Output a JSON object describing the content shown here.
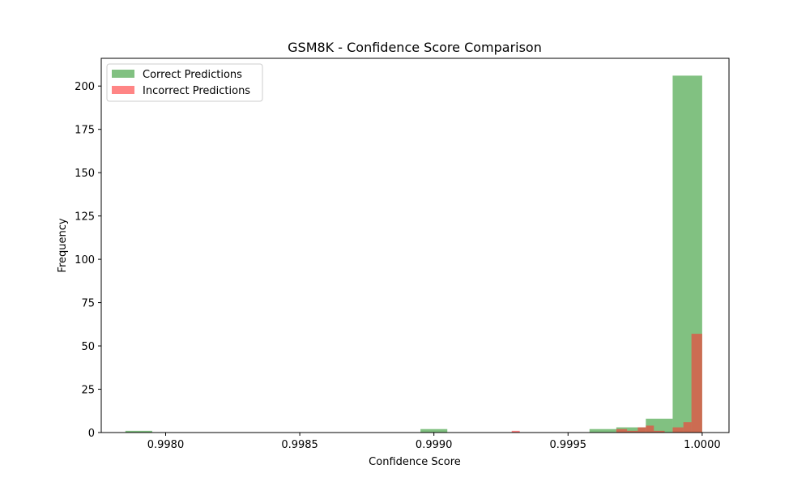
{
  "chart_data": {
    "type": "bar",
    "title": "GSM8K - Confidence Score Comparison",
    "xlabel": "Confidence Score",
    "ylabel": "Frequency",
    "xlim": [
      0.99776,
      1.0001
    ],
    "ylim": [
      0,
      216
    ],
    "xticks": [
      0.998,
      0.9985,
      0.999,
      0.9995,
      1.0
    ],
    "xtick_labels": [
      "0.9980",
      "0.9985",
      "0.9990",
      "0.9995",
      "1.0000"
    ],
    "yticks": [
      0,
      25,
      50,
      75,
      100,
      125,
      150,
      175,
      200
    ],
    "ytick_labels": [
      "0",
      "25",
      "50",
      "75",
      "100",
      "125",
      "150",
      "175",
      "200"
    ],
    "legend_position": "top-left",
    "grid": false,
    "series": [
      {
        "name": "Correct Predictions",
        "color": "#4ca64c",
        "opacity": 0.7,
        "bins": [
          {
            "x0": 0.99785,
            "x1": 0.99795,
            "count": 1
          },
          {
            "x0": 0.99895,
            "x1": 0.99905,
            "count": 2
          },
          {
            "x0": 0.99958,
            "x1": 0.99968,
            "count": 2
          },
          {
            "x0": 0.99968,
            "x1": 0.99979,
            "count": 3
          },
          {
            "x0": 0.99979,
            "x1": 0.99989,
            "count": 8
          },
          {
            "x0": 0.99989,
            "x1": 1.0,
            "count": 206
          }
        ]
      },
      {
        "name": "Incorrect Predictions",
        "color": "#ff3333",
        "opacity": 0.6,
        "bins": [
          {
            "x0": 0.99929,
            "x1": 0.99932,
            "count": 1
          },
          {
            "x0": 0.99968,
            "x1": 0.99972,
            "count": 2
          },
          {
            "x0": 0.99972,
            "x1": 0.99976,
            "count": 1
          },
          {
            "x0": 0.99976,
            "x1": 0.99979,
            "count": 3
          },
          {
            "x0": 0.99979,
            "x1": 0.99982,
            "count": 4
          },
          {
            "x0": 0.99982,
            "x1": 0.99986,
            "count": 1
          },
          {
            "x0": 0.99989,
            "x1": 0.99993,
            "count": 3
          },
          {
            "x0": 0.99993,
            "x1": 0.99996,
            "count": 6
          },
          {
            "x0": 0.99996,
            "x1": 1.0,
            "count": 57
          }
        ]
      }
    ]
  }
}
